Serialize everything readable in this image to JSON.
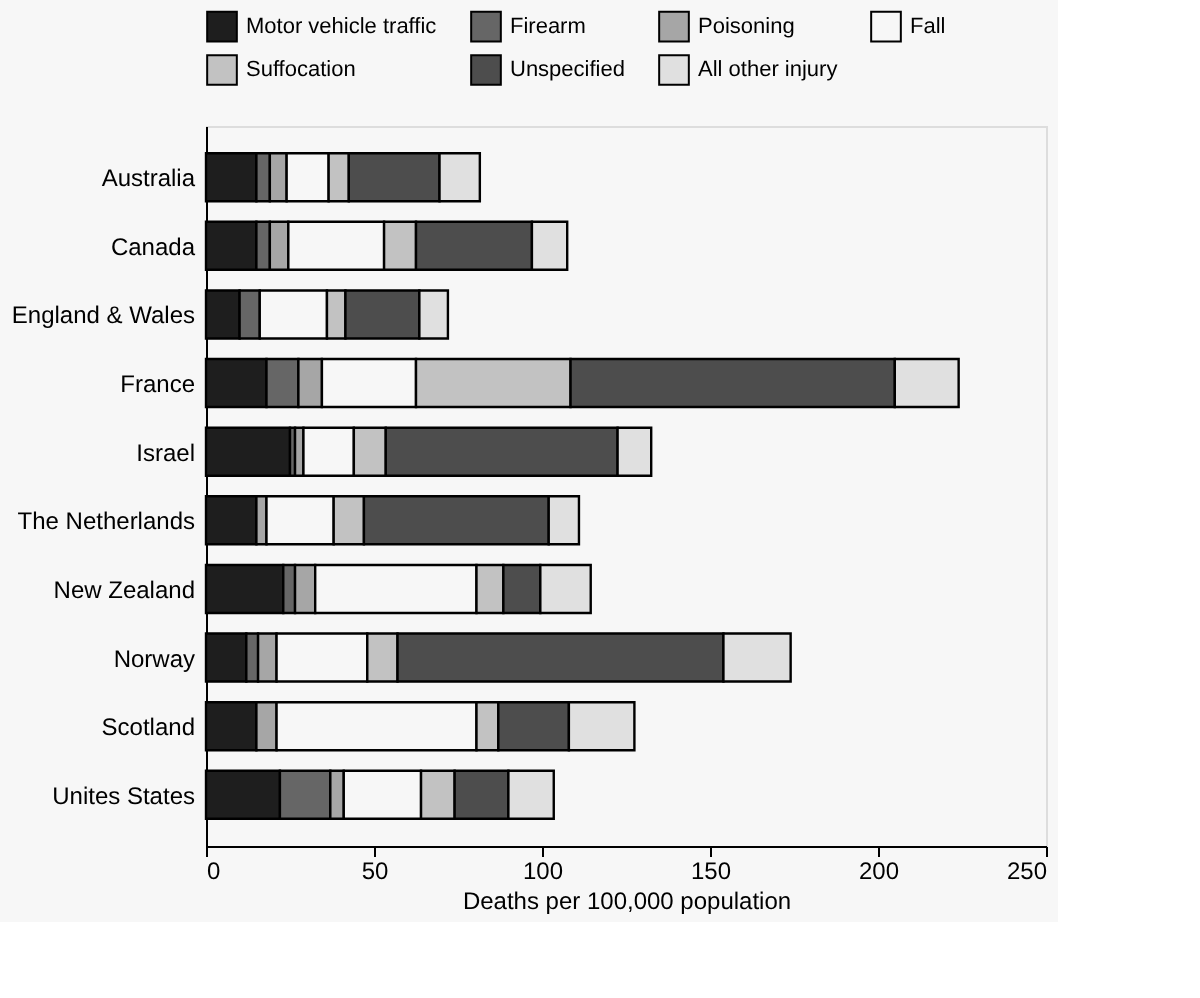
{
  "chart_data": {
    "type": "bar",
    "orientation": "horizontal",
    "stacked": true,
    "xlabel": "Deaths per 100,000 population",
    "categories": [
      "Australia",
      "Canada",
      "England & Wales",
      "France",
      "Israel",
      "The Netherlands",
      "New Zealand",
      "Norway",
      "Scotland",
      "Unites States"
    ],
    "series": [
      {
        "name": "Motor vehicle traffic",
        "color": "#1e1e1e",
        "values": [
          15,
          15,
          10,
          18,
          25,
          15,
          23,
          12,
          15,
          22
        ]
      },
      {
        "name": "Firearm",
        "color": "#666666",
        "values": [
          4,
          4,
          6,
          9.5,
          1.5,
          null,
          3.5,
          3.5,
          null,
          15
        ]
      },
      {
        "name": "Poisoning",
        "color": "#a6a6a6",
        "values": [
          5,
          5.5,
          null,
          7,
          2.5,
          3,
          6,
          5.5,
          6,
          4
        ]
      },
      {
        "name": "Fall",
        "color": "#f7f7f7",
        "values": [
          12.5,
          28.5,
          20,
          28,
          15,
          20,
          48,
          27,
          59.5,
          23
        ]
      },
      {
        "name": "Suffocation",
        "color": "#c2c2c2",
        "values": [
          6,
          9.5,
          5.5,
          46,
          9.5,
          9,
          8,
          9,
          6.5,
          10
        ]
      },
      {
        "name": "Unspecified",
        "color": "#4d4d4d",
        "values": [
          27,
          34.5,
          22,
          96.5,
          69,
          55,
          11,
          97,
          21,
          16
        ]
      },
      {
        "name": "All other injury",
        "color": "#e0e0e0",
        "values": [
          12,
          10.5,
          8.5,
          19,
          10,
          9,
          15,
          20,
          19.5,
          13.5
        ]
      }
    ],
    "xlim": [
      0,
      250
    ],
    "xticks": [
      0,
      50,
      100,
      150,
      200,
      250
    ],
    "grid": false,
    "legend": "top"
  }
}
